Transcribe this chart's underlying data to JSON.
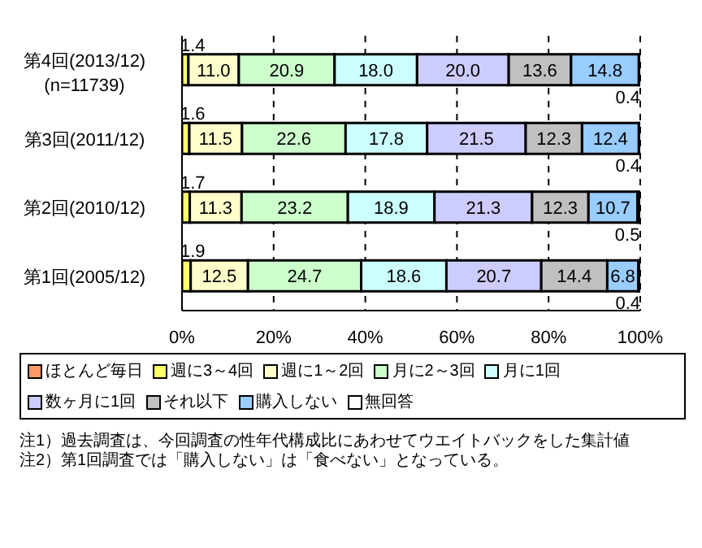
{
  "chart_data": {
    "type": "bar",
    "orientation": "horizontal",
    "stacked": true,
    "categories": [
      "第4回(2013/12)\n(n=11739)",
      "第3回(2011/12)",
      "第2回(2010/12)",
      "第1回(2005/12)"
    ],
    "series": [
      {
        "name": "ほとんど毎日",
        "color": "#ff9966",
        "values": [
          0,
          0,
          0,
          0
        ],
        "value_labels": [
          null,
          null,
          null,
          null
        ]
      },
      {
        "name": "週に3～4回",
        "color": "#ffff66",
        "values": [
          1.4,
          1.6,
          1.7,
          1.9
        ],
        "value_labels": [
          "1.4",
          "1.6",
          "1.7",
          "1.9"
        ]
      },
      {
        "name": "週に1～2回",
        "color": "#ffffcc",
        "values": [
          11.0,
          11.5,
          11.3,
          12.5
        ],
        "value_labels": [
          "11.0",
          "11.5",
          "11.3",
          "12.5"
        ]
      },
      {
        "name": "月に2～3回",
        "color": "#ccffcc",
        "values": [
          20.9,
          22.6,
          23.2,
          24.7
        ],
        "value_labels": [
          "20.9",
          "22.6",
          "23.2",
          "24.7"
        ]
      },
      {
        "name": "月に1回",
        "color": "#ccffff",
        "values": [
          18.0,
          17.8,
          18.9,
          18.6
        ],
        "value_labels": [
          "18.0",
          "17.8",
          "18.9",
          "18.6"
        ]
      },
      {
        "name": "数ヶ月に1回",
        "color": "#ccccff",
        "values": [
          20.0,
          21.5,
          21.3,
          20.7
        ],
        "value_labels": [
          "20.0",
          "21.5",
          "21.3",
          "20.7"
        ]
      },
      {
        "name": "それ以下",
        "color": "#c0c0c0",
        "values": [
          13.6,
          12.3,
          12.3,
          14.4
        ],
        "value_labels": [
          "13.6",
          "12.3",
          "12.3",
          "14.4"
        ]
      },
      {
        "name": "購入しない",
        "color": "#99ccff",
        "values": [
          14.8,
          12.4,
          10.7,
          6.8
        ],
        "value_labels": [
          "14.8",
          "12.4",
          "10.7",
          "6.8"
        ]
      },
      {
        "name": "無回答",
        "color": "#ffffff",
        "values": [
          0.4,
          0.4,
          0.5,
          0.4
        ],
        "value_labels": [
          "0.4",
          "0.4",
          "0.5",
          "0.4"
        ]
      }
    ],
    "xlim": [
      0,
      100
    ],
    "xticks": [
      {
        "value": 0,
        "label": "0%"
      },
      {
        "value": 20,
        "label": "20%"
      },
      {
        "value": 40,
        "label": "40%"
      },
      {
        "value": 60,
        "label": "60%"
      },
      {
        "value": 80,
        "label": "80%"
      },
      {
        "value": 100,
        "label": "100%"
      }
    ],
    "grid": "x",
    "legend": "bottom",
    "annotations": [
      "注1）過去調査は、今回調査の性年代構成比にあわせてウエイトバックをした集計値",
      "注2）第1回調査では「購入しない」は「食べない」となっている。"
    ]
  }
}
